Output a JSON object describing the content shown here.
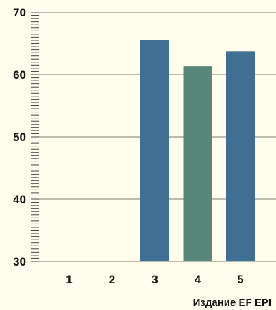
{
  "chart_data": {
    "type": "bar",
    "categories": [
      "1",
      "2",
      "3",
      "4",
      "5"
    ],
    "values": [
      null,
      null,
      65.6,
      61.3,
      63.7
    ],
    "bar_colors": [
      "#3f6f95",
      "#3f6f95",
      "#3f6f95",
      "#58877a",
      "#3f6f95"
    ],
    "xlabel": "Издание EF EPI",
    "ylabel": "",
    "ylim": [
      30,
      70
    ],
    "yticks": [
      30,
      40,
      50,
      60,
      70
    ],
    "grid": true,
    "legend": "none"
  },
  "colors": {
    "background": "#fffdeb",
    "gridline": "#7a7a6a",
    "text": "#111111"
  }
}
